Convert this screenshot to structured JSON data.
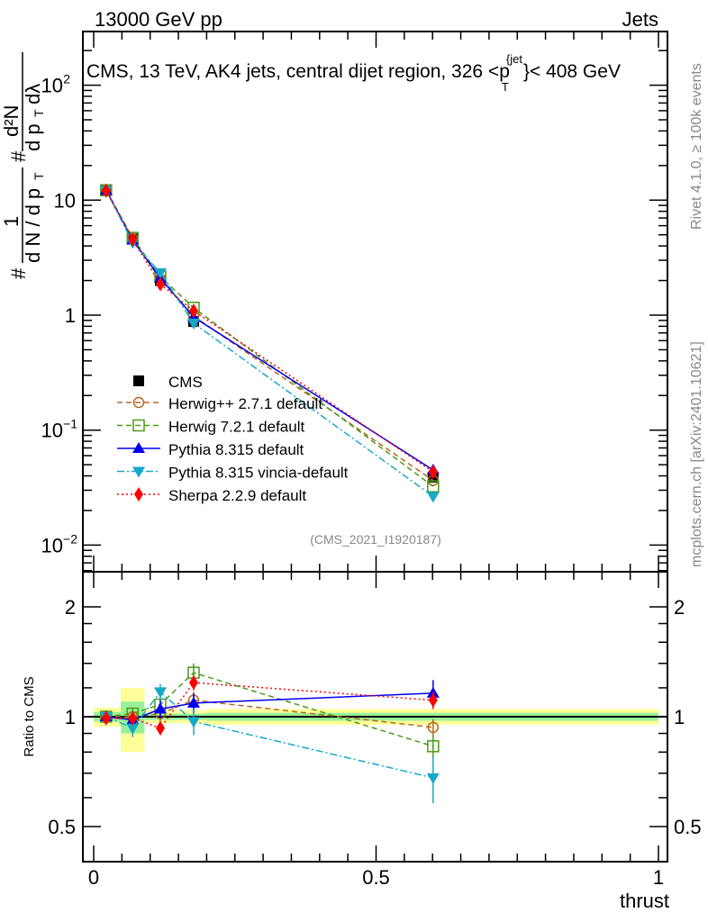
{
  "header": {
    "left": "13000 GeV pp",
    "right": "Jets"
  },
  "side": {
    "rivet": "Rivet 4.1.0, ≥ 100k events",
    "mcplots": "mcplots.cern.ch [arXiv:2401.10621]"
  },
  "chart_data": {
    "type": "line",
    "title": "CMS, 13 TeV, AK4 jets, central dijet region, 326 < p_T^{jet} < 408 GeV",
    "title_parts": {
      "main": "CMS, 13 TeV, AK4 jets, central dijet region, 326 <p",
      "sup": "{jet",
      "sub": "T",
      "end": "}< 408 GeV"
    },
    "ylabel_parts": {
      "hash1": "#",
      "one": "1",
      "dn": "d N / d p",
      "t1": "T",
      "hash2": "#",
      "d2n": "d²N",
      "dpt": "d p",
      "t2": "T",
      "dl": "dλ"
    },
    "xlabel": "thrust",
    "ratio_ylabel": "Ratio to CMS",
    "watermark": "(CMS_2021_I1920187)",
    "xlim": [
      -0.019,
      1.016
    ],
    "ylim_main": [
      0.0059,
      295
    ],
    "ylim_ratio": [
      0.4,
      2.48
    ],
    "yscale": "log",
    "x_ticks": [
      {
        "v": 0,
        "label": "0"
      },
      {
        "v": 0.5,
        "label": "0.5"
      },
      {
        "v": 1,
        "label": "1"
      }
    ],
    "y_ticks_main": [
      {
        "v": 0.01,
        "base": "10",
        "exp": "−2"
      },
      {
        "v": 0.1,
        "base": "10",
        "exp": "−1"
      },
      {
        "v": 1,
        "base": "1",
        "exp": ""
      },
      {
        "v": 10,
        "base": "10",
        "exp": ""
      },
      {
        "v": 100,
        "base": "10",
        "exp": "2"
      }
    ],
    "y_ticks_ratio": [
      {
        "v": 0.5,
        "label": "0.5"
      },
      {
        "v": 1,
        "label": "1"
      },
      {
        "v": 2,
        "label": "2"
      }
    ],
    "bins": [
      [
        0,
        0.048
      ],
      [
        0.048,
        0.09
      ],
      [
        0.09,
        0.15
      ],
      [
        0.15,
        0.2
      ],
      [
        0.2,
        1.0
      ]
    ],
    "x": [
      0.022,
      0.069,
      0.118,
      0.177,
      0.601
    ],
    "data": {
      "name": "CMS",
      "values": [
        12.2,
        4.6,
        2.0,
        0.88,
        0.039
      ],
      "band_stat": [
        0.03,
        0.1,
        0.02,
        0.02,
        0.025
      ],
      "band_tot": [
        0.06,
        0.2,
        0.04,
        0.04,
        0.05
      ]
    },
    "series": [
      {
        "name": "Herwig++ 2.7.1 default",
        "color": "#b8651b",
        "marker": "circle-open",
        "dash": "6,4",
        "values": [
          12.2,
          4.6,
          2.04,
          0.98,
          0.0365
        ],
        "ratio": [
          1.0,
          1.0,
          1.02,
          1.11,
          0.935
        ],
        "ratio_err": [
          0.03,
          0.04,
          0.05,
          0.06,
          0.05
        ]
      },
      {
        "name": "Herwig 7.2.1 default",
        "color": "#4a9a19",
        "marker": "square-open",
        "dash": "6,4",
        "values": [
          12.2,
          4.7,
          2.16,
          1.16,
          0.0324
        ],
        "ratio": [
          1.0,
          1.02,
          1.08,
          1.32,
          0.83
        ],
        "ratio_err": [
          0.03,
          0.04,
          0.05,
          0.08,
          0.06
        ]
      },
      {
        "name": "Pythia 8.315 default",
        "color": "#0000ee",
        "marker": "triangle-up",
        "dash": "",
        "values": [
          12.2,
          4.5,
          2.1,
          0.96,
          0.045
        ],
        "ratio": [
          1.0,
          0.98,
          1.05,
          1.09,
          1.16
        ],
        "ratio_err": [
          0.03,
          0.04,
          0.06,
          0.07,
          0.1
        ]
      },
      {
        "name": "Pythia 8.315 vincia-default",
        "color": "#18a8c8",
        "marker": "triangle-down",
        "dash": "8,3,2,3",
        "values": [
          12.2,
          4.28,
          2.34,
          0.85,
          0.0265
        ],
        "ratio": [
          1.0,
          0.93,
          1.17,
          0.97,
          0.68
        ],
        "ratio_err": [
          0.03,
          0.05,
          0.06,
          0.08,
          0.1
        ]
      },
      {
        "name": "Sherpa 2.2.9 default",
        "color": "#ff0000",
        "marker": "diamond",
        "dash": "2,3",
        "values": [
          12.1,
          4.55,
          1.86,
          1.09,
          0.0433
        ],
        "ratio": [
          0.99,
          0.99,
          0.93,
          1.24,
          1.11
        ],
        "ratio_err": [
          0.03,
          0.04,
          0.04,
          0.06,
          0.06
        ]
      }
    ],
    "legend_position": "lower-left",
    "grid": false
  }
}
